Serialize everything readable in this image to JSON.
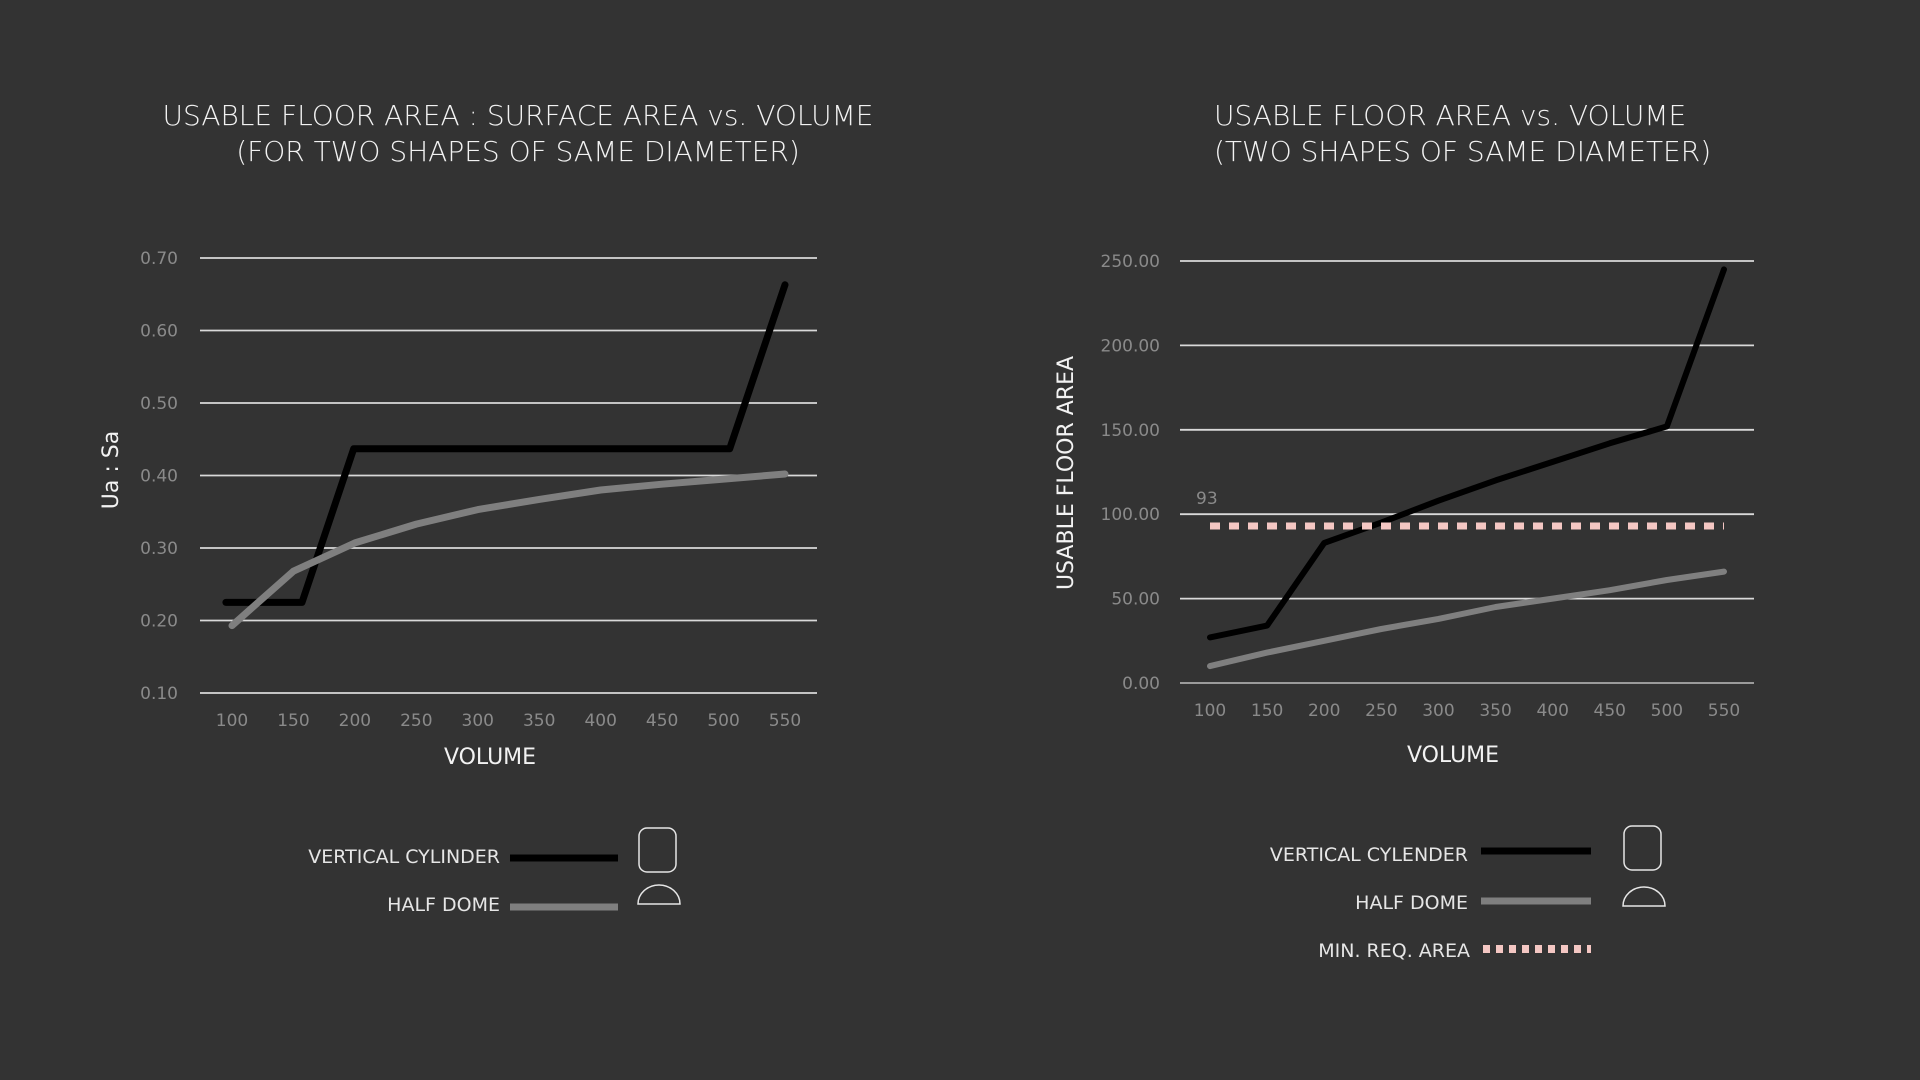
{
  "colors": {
    "background": "#333333",
    "grid": "#d9d9d9",
    "vertical_cylinder": "#000000",
    "half_dome": "#7f7f7f",
    "min_req_area": "#f4c7c3"
  },
  "chart_data": [
    {
      "type": "line",
      "title": [
        "USABLE FLOOR AREA : SURFACE AREA vs. VOLUME",
        "(FOR TWO SHAPES OF SAME DIAMETER)"
      ],
      "xlabel": "VOLUME",
      "ylabel": "Ua : Sa",
      "x": [
        100,
        150,
        200,
        250,
        300,
        350,
        400,
        450,
        500,
        550
      ],
      "ylim": [
        0.1,
        0.7
      ],
      "yticks": [
        "0.10",
        "0.20",
        "0.30",
        "0.40",
        "0.50",
        "0.60",
        "0.70"
      ],
      "grid": true,
      "legend_position": "bottom",
      "series": [
        {
          "name": "VERTICAL CYLINDER",
          "icon": "cylinder-shape-icon",
          "points": [
            [
              95,
              0.225
            ],
            [
              157,
              0.225
            ],
            [
              199,
              0.437
            ],
            [
              250,
              0.437
            ],
            [
              300,
              0.437
            ],
            [
              350,
              0.437
            ],
            [
              400,
              0.437
            ],
            [
              450,
              0.437
            ],
            [
              505,
              0.437
            ],
            [
              550,
              0.663
            ]
          ]
        },
        {
          "name": "HALF DOME",
          "icon": "dome-shape-icon",
          "points": [
            [
              100,
              0.193
            ],
            [
              150,
              0.268
            ],
            [
              200,
              0.307
            ],
            [
              250,
              0.333
            ],
            [
              300,
              0.353
            ],
            [
              350,
              0.367
            ],
            [
              400,
              0.38
            ],
            [
              450,
              0.388
            ],
            [
              500,
              0.395
            ],
            [
              550,
              0.402
            ]
          ]
        }
      ]
    },
    {
      "type": "line",
      "title": [
        "USABLE FLOOR AREA vs. VOLUME",
        "(TWO SHAPES OF SAME DIAMETER)"
      ],
      "xlabel": "VOLUME",
      "ylabel": "USABLE FLOOR AREA",
      "x": [
        100,
        150,
        200,
        250,
        300,
        350,
        400,
        450,
        500,
        550
      ],
      "ylim": [
        0,
        250
      ],
      "yticks": [
        "0.00",
        "50.00",
        "100.00",
        "150.00",
        "200.00",
        "250.00"
      ],
      "grid": true,
      "legend_position": "bottom",
      "series": [
        {
          "name": "VERTICAL CYLENDER",
          "icon": "cylinder-shape-icon",
          "points": [
            [
              100,
              27
            ],
            [
              150,
              34
            ],
            [
              200,
              83
            ],
            [
              250,
              95
            ],
            [
              300,
              108
            ],
            [
              350,
              120
            ],
            [
              400,
              131
            ],
            [
              450,
              142
            ],
            [
              500,
              152
            ],
            [
              550,
              245
            ]
          ]
        },
        {
          "name": "HALF DOME",
          "icon": "dome-shape-icon",
          "points": [
            [
              100,
              10
            ],
            [
              150,
              18
            ],
            [
              200,
              25
            ],
            [
              250,
              32
            ],
            [
              300,
              38
            ],
            [
              350,
              45
            ],
            [
              400,
              50
            ],
            [
              450,
              55
            ],
            [
              500,
              61
            ],
            [
              550,
              66
            ]
          ]
        },
        {
          "name": "MIN. REQ. AREA",
          "dashed": true,
          "points": [
            [
              100,
              93
            ],
            [
              550,
              93
            ]
          ]
        }
      ],
      "annotations": [
        {
          "text": "93"
        }
      ]
    }
  ]
}
